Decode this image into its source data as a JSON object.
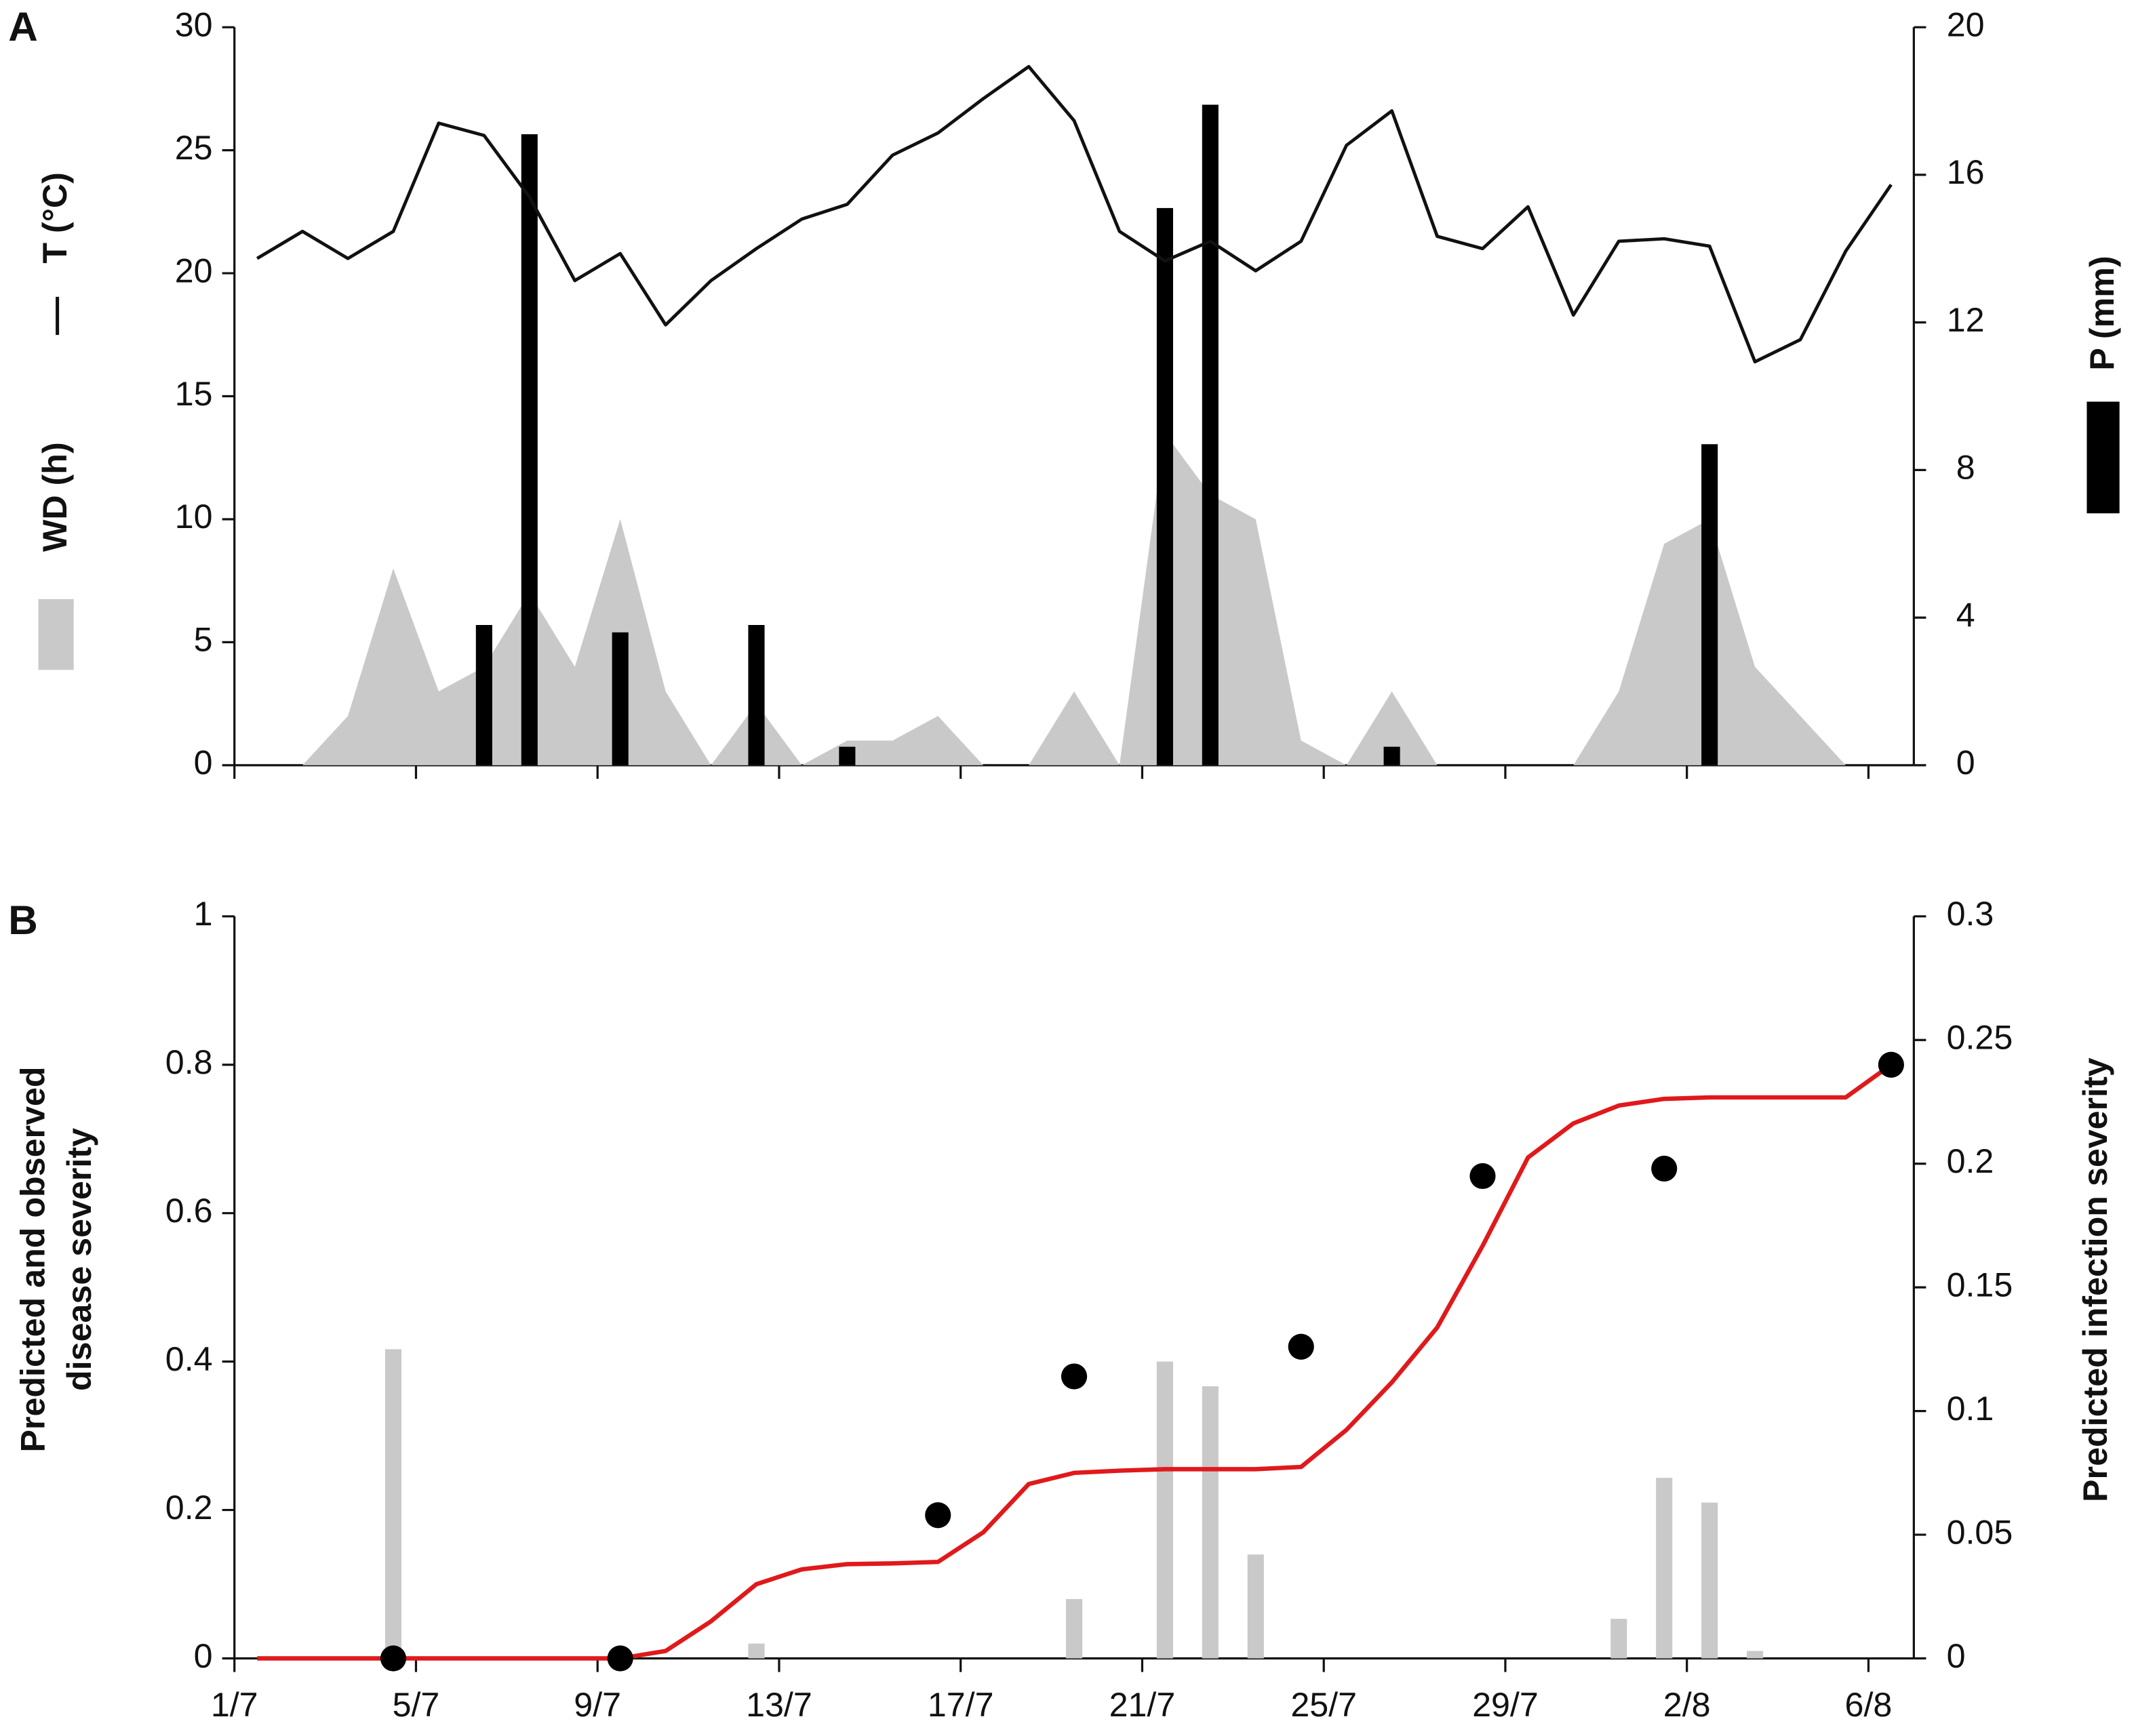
{
  "chart_data": [
    {
      "type": "combo",
      "panel": "A",
      "x": [
        0.5,
        1.5,
        2.5,
        3.5,
        4.5,
        5.5,
        6.5,
        7.5,
        8.5,
        9.5,
        10.5,
        11.5,
        12.5,
        13.5,
        14.5,
        15.5,
        16.5,
        17.5,
        18.5,
        19.5,
        20.5,
        21.5,
        22.5,
        23.5,
        24.5,
        25.5,
        26.5,
        27.5,
        28.5,
        29.5,
        30.5,
        31.5,
        32.5,
        33.5,
        34.5,
        35.5,
        36.5
      ],
      "xlim": [
        0,
        37
      ],
      "xticks": [
        0,
        4,
        8,
        12,
        16,
        20,
        24,
        28,
        32,
        36
      ],
      "ylim": [
        0,
        30
      ],
      "yticks": [
        0,
        5,
        10,
        15,
        20,
        25,
        30
      ],
      "y2lim": [
        0,
        20
      ],
      "y2ticks": [
        0,
        4,
        8,
        12,
        16,
        20
      ],
      "series": [
        {
          "name": "WD (h)",
          "type": "area",
          "color": "#c9c9c9",
          "values": [
            0,
            0,
            2,
            8,
            3,
            4,
            7,
            4,
            10,
            3,
            0,
            2.5,
            0,
            1,
            1,
            2,
            0,
            0,
            3,
            0,
            13.5,
            11,
            10,
            1,
            0,
            3,
            0,
            0,
            0,
            0,
            3,
            9,
            10,
            4,
            2,
            0,
            0
          ]
        },
        {
          "name": "P (mm)",
          "type": "bar",
          "axis": "y2",
          "color": "#000000",
          "values": [
            0,
            0,
            0,
            0,
            0,
            3.8,
            17.1,
            0,
            3.6,
            0,
            0,
            3.8,
            0,
            0.5,
            0,
            0,
            0,
            0,
            0,
            0,
            15.1,
            17.9,
            0,
            0,
            0,
            0.5,
            0,
            0,
            0,
            0,
            0,
            0,
            8.7,
            0,
            0,
            0,
            0
          ]
        },
        {
          "name": "T (°C)",
          "type": "line",
          "color": "#111111",
          "values": [
            20.6,
            21.7,
            20.6,
            21.7,
            26.1,
            25.6,
            23.1,
            19.7,
            20.8,
            17.9,
            19.7,
            21.0,
            22.2,
            22.8,
            24.8,
            25.7,
            27.1,
            28.4,
            26.2,
            21.7,
            20.5,
            21.3,
            20.1,
            21.3,
            25.2,
            26.6,
            21.5,
            21.0,
            22.7,
            18.3,
            21.3,
            21.4,
            21.1,
            16.4,
            17.3,
            20.9,
            23.6
          ]
        }
      ]
    },
    {
      "type": "combo",
      "panel": "B",
      "ylabel": [
        "Predicted and observed",
        "disease severity"
      ],
      "y2label": "Predicted infection severity",
      "x": [
        0.5,
        1.5,
        2.5,
        3.5,
        4.5,
        5.5,
        6.5,
        7.5,
        8.5,
        9.5,
        10.5,
        11.5,
        12.5,
        13.5,
        14.5,
        15.5,
        16.5,
        17.5,
        18.5,
        19.5,
        20.5,
        21.5,
        22.5,
        23.5,
        24.5,
        25.5,
        26.5,
        27.5,
        28.5,
        29.5,
        30.5,
        31.5,
        32.5,
        33.5,
        34.5,
        35.5,
        36.5
      ],
      "xlim": [
        0,
        37
      ],
      "xticks": [
        {
          "value": 0,
          "label": "1/7"
        },
        {
          "value": 4,
          "label": "5/7"
        },
        {
          "value": 8,
          "label": "9/7"
        },
        {
          "value": 12,
          "label": "13/7"
        },
        {
          "value": 16,
          "label": "17/7"
        },
        {
          "value": 20,
          "label": "21/7"
        },
        {
          "value": 24,
          "label": "25/7"
        },
        {
          "value": 28,
          "label": "29/7"
        },
        {
          "value": 32,
          "label": "2/8"
        },
        {
          "value": 36,
          "label": "6/8"
        }
      ],
      "ylim": [
        0,
        1
      ],
      "yticks": [
        0,
        0.2,
        0.4,
        0.6,
        0.8,
        1
      ],
      "y2lim": [
        0,
        0.3
      ],
      "y2ticks": [
        0,
        0.05,
        0.1,
        0.15,
        0.2,
        0.25,
        0.3
      ],
      "series": [
        {
          "type": "bar",
          "axis": "y2",
          "color": "#c9c9c9",
          "values": [
            0,
            0,
            0,
            0.125,
            0,
            0,
            0,
            0,
            0,
            0,
            0,
            0.006,
            0,
            0,
            0,
            0,
            0,
            0,
            0.024,
            0,
            0.12,
            0.11,
            0.042,
            0,
            0,
            0,
            0,
            0,
            0,
            0,
            0.016,
            0.073,
            0.063,
            0.003,
            0,
            0,
            0
          ]
        },
        {
          "type": "line",
          "color": "#e0191b",
          "values": [
            0,
            0,
            0,
            0,
            0,
            0,
            0,
            0,
            0,
            0.01,
            0.05,
            0.1,
            0.12,
            0.127,
            0.128,
            0.13,
            0.17,
            0.235,
            0.25,
            0.253,
            0.255,
            0.255,
            0.255,
            0.258,
            0.308,
            0.372,
            0.446,
            0.556,
            0.675,
            0.721,
            0.745,
            0.754,
            0.756,
            0.756,
            0.756,
            0.756,
            0.8
          ]
        },
        {
          "type": "scatter",
          "color": "#000000",
          "x": [
            3.5,
            8.5,
            15.5,
            18.5,
            23.5,
            27.5,
            31.5,
            36.5
          ],
          "values": [
            0,
            0,
            0.193,
            0.38,
            0.42,
            0.65,
            0.66,
            0.8
          ]
        }
      ]
    }
  ]
}
